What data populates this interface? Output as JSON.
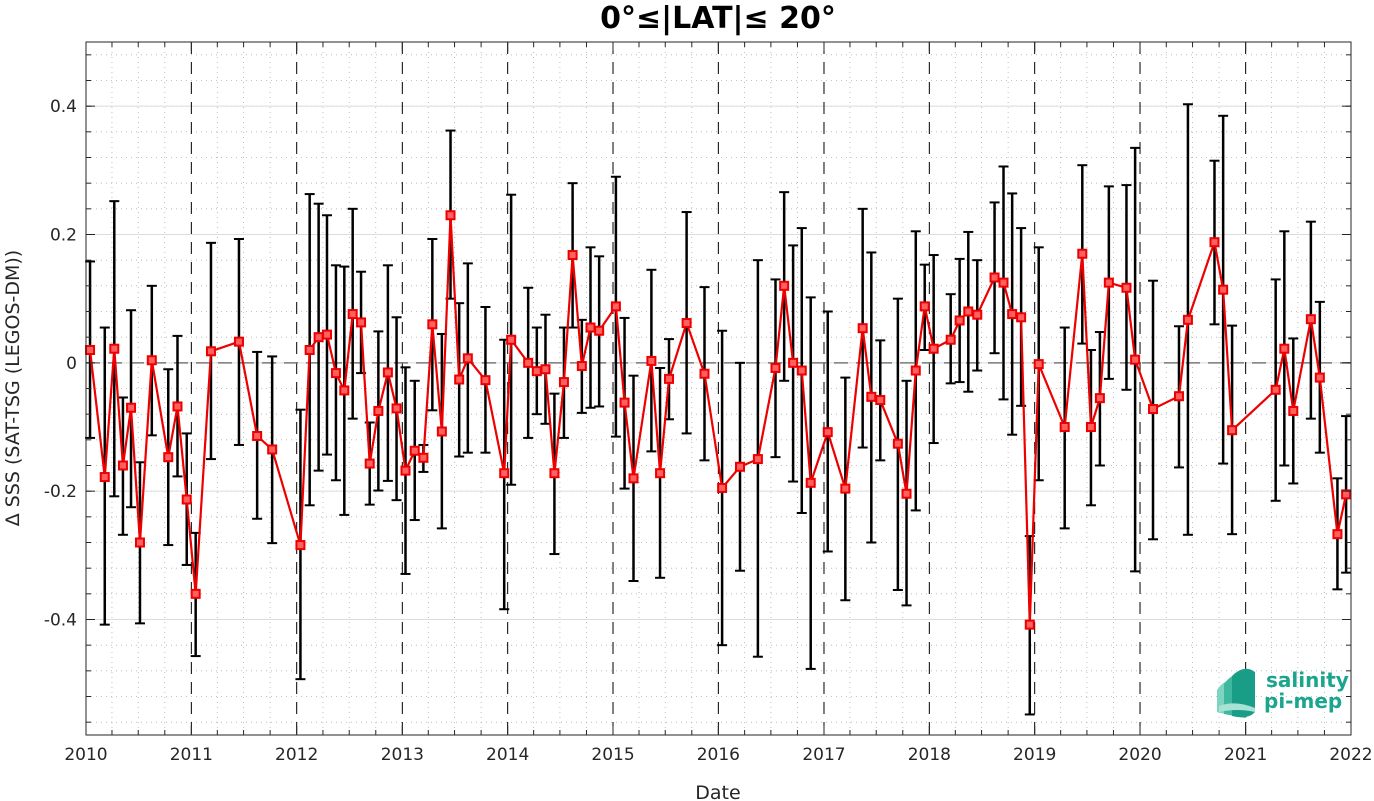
{
  "chart_data": {
    "type": "line",
    "title": "0°≤|LAT|≤ 20°",
    "xlabel": "Date",
    "ylabel": "Δ SSS (SAT-TSG (LEGOS-DM))",
    "xlim": [
      "2010-01-01",
      "2022-01-01"
    ],
    "ylim": [
      -0.58,
      0.5
    ],
    "x_ticks": [
      "2010",
      "2011",
      "2012",
      "2013",
      "2014",
      "2015",
      "2016",
      "2017",
      "2018",
      "2019",
      "2020",
      "2021",
      "2022"
    ],
    "y_ticks": [
      {
        "value": -0.4,
        "label": "-0.4"
      },
      {
        "value": -0.2,
        "label": "-0.2"
      },
      {
        "value": 0,
        "label": "0"
      },
      {
        "value": 0.2,
        "label": "0.2"
      },
      {
        "value": 0.4,
        "label": "0.4"
      }
    ],
    "grid": true,
    "year_divider_lines": "dashed",
    "zero_line": "dashed",
    "series": [
      {
        "color": "#ee0000",
        "errorbar_color": "#000000",
        "marker": "square",
        "points": [
          {
            "x": "2010-01-15",
            "y": 0.02,
            "lo": -0.117,
            "hi": 0.158
          },
          {
            "x": "2010-03-07",
            "y": -0.178,
            "lo": -0.408,
            "hi": 0.055
          },
          {
            "x": "2010-04-09",
            "y": 0.022,
            "lo": -0.208,
            "hi": 0.252
          },
          {
            "x": "2010-05-09",
            "y": -0.16,
            "lo": -0.268,
            "hi": -0.054
          },
          {
            "x": "2010-06-06",
            "y": -0.07,
            "lo": -0.225,
            "hi": 0.082
          },
          {
            "x": "2010-07-07",
            "y": -0.28,
            "lo": -0.406,
            "hi": -0.155
          },
          {
            "x": "2010-08-17",
            "y": 0.004,
            "lo": -0.113,
            "hi": 0.12
          },
          {
            "x": "2010-10-13",
            "y": -0.147,
            "lo": -0.284,
            "hi": -0.01
          },
          {
            "x": "2010-11-14",
            "y": -0.068,
            "lo": -0.177,
            "hi": 0.042
          },
          {
            "x": "2010-12-16",
            "y": -0.213,
            "lo": -0.315,
            "hi": -0.11
          },
          {
            "x": "2011-01-16",
            "y": -0.36,
            "lo": -0.457,
            "hi": -0.265
          },
          {
            "x": "2011-03-10",
            "y": 0.018,
            "lo": -0.15,
            "hi": 0.187
          },
          {
            "x": "2011-06-15",
            "y": 0.033,
            "lo": -0.128,
            "hi": 0.193
          },
          {
            "x": "2011-08-17",
            "y": -0.114,
            "lo": -0.243,
            "hi": 0.017
          },
          {
            "x": "2011-10-08",
            "y": -0.135,
            "lo": -0.281,
            "hi": 0.01
          },
          {
            "x": "2012-01-14",
            "y": -0.284,
            "lo": -0.493,
            "hi": -0.073
          },
          {
            "x": "2012-02-15",
            "y": 0.02,
            "lo": -0.222,
            "hi": 0.263
          },
          {
            "x": "2012-03-17",
            "y": 0.04,
            "lo": -0.168,
            "hi": 0.248
          },
          {
            "x": "2012-04-15",
            "y": 0.044,
            "lo": -0.143,
            "hi": 0.23
          },
          {
            "x": "2012-05-16",
            "y": -0.016,
            "lo": -0.183,
            "hi": 0.152
          },
          {
            "x": "2012-06-14",
            "y": -0.043,
            "lo": -0.237,
            "hi": 0.15
          },
          {
            "x": "2012-07-13",
            "y": 0.076,
            "lo": -0.087,
            "hi": 0.24
          },
          {
            "x": "2012-08-11",
            "y": 0.063,
            "lo": -0.016,
            "hi": 0.142
          },
          {
            "x": "2012-09-10",
            "y": -0.157,
            "lo": -0.221,
            "hi": -0.093
          },
          {
            "x": "2012-10-10",
            "y": -0.075,
            "lo": -0.199,
            "hi": 0.049
          },
          {
            "x": "2012-11-12",
            "y": -0.015,
            "lo": -0.184,
            "hi": 0.152
          },
          {
            "x": "2012-12-12",
            "y": -0.071,
            "lo": -0.214,
            "hi": 0.071
          },
          {
            "x": "2013-01-12",
            "y": -0.168,
            "lo": -0.329,
            "hi": -0.007
          },
          {
            "x": "2013-02-13",
            "y": -0.137,
            "lo": -0.245,
            "hi": -0.028
          },
          {
            "x": "2013-03-15",
            "y": -0.148,
            "lo": -0.17,
            "hi": -0.128
          },
          {
            "x": "2013-04-15",
            "y": 0.06,
            "lo": -0.074,
            "hi": 0.193
          },
          {
            "x": "2013-05-18",
            "y": -0.107,
            "lo": -0.258,
            "hi": 0.045
          },
          {
            "x": "2013-06-17",
            "y": 0.23,
            "lo": 0.1,
            "hi": 0.362
          },
          {
            "x": "2013-07-17",
            "y": -0.026,
            "lo": -0.146,
            "hi": 0.093
          },
          {
            "x": "2013-08-16",
            "y": 0.007,
            "lo": -0.14,
            "hi": 0.155
          },
          {
            "x": "2013-10-16",
            "y": -0.027,
            "lo": -0.14,
            "hi": 0.087
          },
          {
            "x": "2013-12-20",
            "y": -0.172,
            "lo": -0.384,
            "hi": 0.036
          },
          {
            "x": "2014-01-13",
            "y": 0.036,
            "lo": -0.19,
            "hi": 0.262
          },
          {
            "x": "2014-03-13",
            "y": 0.0,
            "lo": -0.117,
            "hi": 0.117
          },
          {
            "x": "2014-04-12",
            "y": -0.013,
            "lo": -0.08,
            "hi": 0.055
          },
          {
            "x": "2014-05-12",
            "y": -0.01,
            "lo": -0.095,
            "hi": 0.075
          },
          {
            "x": "2014-06-12",
            "y": -0.172,
            "lo": -0.298,
            "hi": -0.048
          },
          {
            "x": "2014-07-15",
            "y": -0.03,
            "lo": -0.117,
            "hi": 0.055
          },
          {
            "x": "2014-08-14",
            "y": 0.168,
            "lo": 0.055,
            "hi": 0.28
          },
          {
            "x": "2014-09-15",
            "y": -0.005,
            "lo": -0.078,
            "hi": 0.067
          },
          {
            "x": "2014-10-15",
            "y": 0.055,
            "lo": -0.07,
            "hi": 0.18
          },
          {
            "x": "2014-11-14",
            "y": 0.05,
            "lo": -0.068,
            "hi": 0.166
          },
          {
            "x": "2015-01-11",
            "y": 0.088,
            "lo": -0.115,
            "hi": 0.29
          },
          {
            "x": "2015-02-10",
            "y": -0.062,
            "lo": -0.196,
            "hi": 0.07
          },
          {
            "x": "2015-03-13",
            "y": -0.18,
            "lo": -0.34,
            "hi": -0.02
          },
          {
            "x": "2015-05-14",
            "y": 0.003,
            "lo": -0.138,
            "hi": 0.145
          },
          {
            "x": "2015-06-13",
            "y": -0.172,
            "lo": -0.335,
            "hi": -0.008
          },
          {
            "x": "2015-07-14",
            "y": -0.025,
            "lo": -0.088,
            "hi": 0.037
          },
          {
            "x": "2015-09-13",
            "y": 0.062,
            "lo": -0.11,
            "hi": 0.235
          },
          {
            "x": "2015-11-14",
            "y": -0.017,
            "lo": -0.152,
            "hi": 0.118
          },
          {
            "x": "2016-01-14",
            "y": -0.195,
            "lo": -0.44,
            "hi": 0.05
          },
          {
            "x": "2016-03-16",
            "y": -0.162,
            "lo": -0.324,
            "hi": 0.0
          },
          {
            "x": "2016-05-17",
            "y": -0.15,
            "lo": -0.458,
            "hi": 0.16
          },
          {
            "x": "2016-07-17",
            "y": -0.008,
            "lo": -0.147,
            "hi": 0.13
          },
          {
            "x": "2016-08-16",
            "y": 0.12,
            "lo": -0.028,
            "hi": 0.266
          },
          {
            "x": "2016-09-16",
            "y": 0.0,
            "lo": -0.185,
            "hi": 0.183
          },
          {
            "x": "2016-10-16",
            "y": -0.012,
            "lo": -0.234,
            "hi": 0.21
          },
          {
            "x": "2016-11-16",
            "y": -0.187,
            "lo": -0.477,
            "hi": 0.102
          },
          {
            "x": "2017-01-14",
            "y": -0.108,
            "lo": -0.294,
            "hi": 0.08
          },
          {
            "x": "2017-03-16",
            "y": -0.196,
            "lo": -0.37,
            "hi": -0.023
          },
          {
            "x": "2017-05-15",
            "y": 0.054,
            "lo": -0.132,
            "hi": 0.24
          },
          {
            "x": "2017-06-14",
            "y": -0.053,
            "lo": -0.28,
            "hi": 0.172
          },
          {
            "x": "2017-07-15",
            "y": -0.058,
            "lo": -0.152,
            "hi": 0.035
          },
          {
            "x": "2017-09-14",
            "y": -0.126,
            "lo": -0.354,
            "hi": 0.1
          },
          {
            "x": "2017-10-14",
            "y": -0.204,
            "lo": -0.378,
            "hi": -0.028
          },
          {
            "x": "2017-11-15",
            "y": -0.012,
            "lo": -0.23,
            "hi": 0.205
          },
          {
            "x": "2017-12-16",
            "y": 0.088,
            "lo": 0.02,
            "hi": 0.153
          },
          {
            "x": "2018-01-16",
            "y": 0.022,
            "lo": -0.125,
            "hi": 0.168
          },
          {
            "x": "2018-03-16",
            "y": 0.036,
            "lo": -0.032,
            "hi": 0.107
          },
          {
            "x": "2018-04-16",
            "y": 0.066,
            "lo": -0.03,
            "hi": 0.162
          },
          {
            "x": "2018-05-16",
            "y": 0.08,
            "lo": -0.045,
            "hi": 0.204
          },
          {
            "x": "2018-06-16",
            "y": 0.075,
            "lo": -0.012,
            "hi": 0.16
          },
          {
            "x": "2018-08-15",
            "y": 0.133,
            "lo": 0.015,
            "hi": 0.25
          },
          {
            "x": "2018-09-15",
            "y": 0.125,
            "lo": -0.057,
            "hi": 0.306
          },
          {
            "x": "2018-10-15",
            "y": 0.076,
            "lo": -0.112,
            "hi": 0.264
          },
          {
            "x": "2018-11-15",
            "y": 0.071,
            "lo": -0.067,
            "hi": 0.21
          },
          {
            "x": "2018-12-15",
            "y": -0.408,
            "lo": -0.548,
            "hi": -0.27
          },
          {
            "x": "2019-01-15",
            "y": -0.002,
            "lo": -0.183,
            "hi": 0.18
          },
          {
            "x": "2019-04-15",
            "y": -0.1,
            "lo": -0.258,
            "hi": 0.055
          },
          {
            "x": "2019-06-15",
            "y": 0.17,
            "lo": 0.03,
            "hi": 0.308
          },
          {
            "x": "2019-07-15",
            "y": -0.1,
            "lo": -0.222,
            "hi": 0.02
          },
          {
            "x": "2019-08-15",
            "y": -0.055,
            "lo": -0.16,
            "hi": 0.048
          },
          {
            "x": "2019-09-15",
            "y": 0.125,
            "lo": -0.025,
            "hi": 0.275
          },
          {
            "x": "2019-11-15",
            "y": 0.117,
            "lo": -0.042,
            "hi": 0.277
          },
          {
            "x": "2019-12-15",
            "y": 0.005,
            "lo": -0.325,
            "hi": 0.335
          },
          {
            "x": "2020-02-15",
            "y": -0.072,
            "lo": -0.275,
            "hi": 0.128
          },
          {
            "x": "2020-05-15",
            "y": -0.052,
            "lo": -0.163,
            "hi": 0.057
          },
          {
            "x": "2020-06-15",
            "y": 0.067,
            "lo": -0.268,
            "hi": 0.403
          },
          {
            "x": "2020-09-15",
            "y": 0.188,
            "lo": 0.06,
            "hi": 0.315
          },
          {
            "x": "2020-10-15",
            "y": 0.114,
            "lo": -0.157,
            "hi": 0.385
          },
          {
            "x": "2020-11-15",
            "y": -0.105,
            "lo": -0.267,
            "hi": 0.058
          },
          {
            "x": "2021-04-15",
            "y": -0.042,
            "lo": -0.215,
            "hi": 0.13
          },
          {
            "x": "2021-05-15",
            "y": 0.022,
            "lo": -0.16,
            "hi": 0.205
          },
          {
            "x": "2021-06-15",
            "y": -0.075,
            "lo": -0.188,
            "hi": 0.038
          },
          {
            "x": "2021-08-15",
            "y": 0.068,
            "lo": -0.087,
            "hi": 0.22
          },
          {
            "x": "2021-09-15",
            "y": -0.023,
            "lo": -0.14,
            "hi": 0.095
          },
          {
            "x": "2021-11-15",
            "y": -0.267,
            "lo": -0.353,
            "hi": -0.18
          },
          {
            "x": "2021-12-15",
            "y": -0.205,
            "lo": -0.327,
            "hi": -0.083
          }
        ]
      }
    ]
  },
  "logo": {
    "line1": "salinity",
    "line2": "pi-mep",
    "color": "#1aa58c"
  }
}
